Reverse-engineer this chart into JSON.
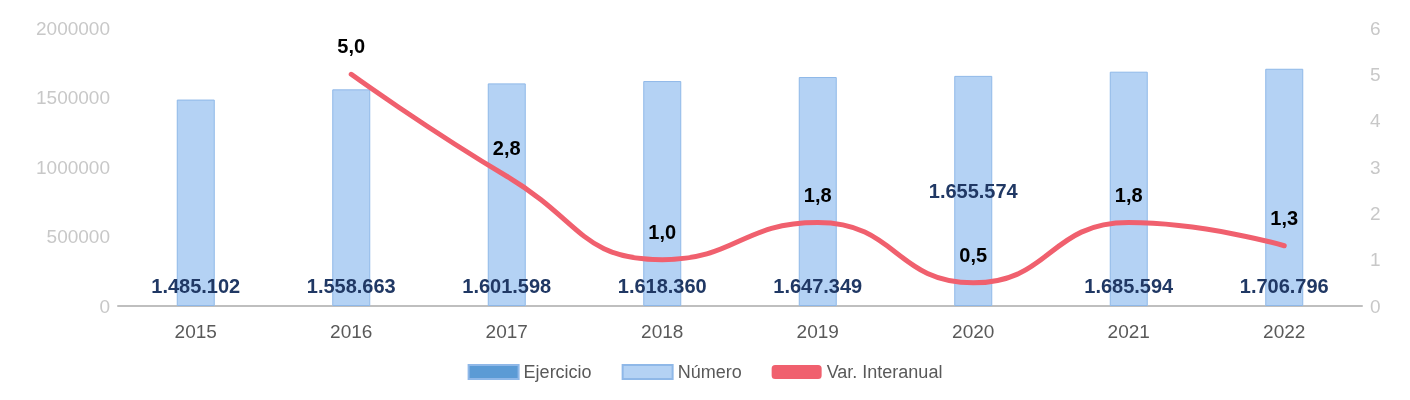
{
  "chart_data": {
    "type": "bar",
    "categories": [
      "2015",
      "2016",
      "2017",
      "2018",
      "2019",
      "2020",
      "2021",
      "2022"
    ],
    "series": [
      {
        "name": "Ejercicio",
        "color": "#5b9bd5",
        "values": [
          null,
          null,
          null,
          null,
          null,
          null,
          null,
          null
        ]
      },
      {
        "name": "Número",
        "color": "#b4d2f4",
        "values": [
          1485102,
          1558663,
          1601598,
          1618360,
          1647349,
          1655574,
          1685594,
          1706796
        ],
        "value_labels": [
          "1.485.102",
          "1.558.663",
          "1.601.598",
          "1.618.360",
          "1.647.349",
          "1.655.574",
          "1.685.594",
          "1.706.796"
        ]
      },
      {
        "name": "Var. Interanual",
        "type": "line",
        "axis": "y2",
        "color": "#f0606e",
        "values": [
          null,
          5.0,
          2.8,
          1.0,
          1.8,
          0.5,
          1.8,
          1.3
        ],
        "value_labels": [
          null,
          "5,0",
          "2,8",
          "1,0",
          "1,8",
          "0,5",
          "1,8",
          "1,3"
        ]
      }
    ],
    "ylim": [
      0,
      2000000
    ],
    "yticks": [
      0,
      500000,
      1000000,
      1500000,
      2000000
    ],
    "y2lim": [
      0,
      6
    ],
    "y2ticks": [
      0,
      1,
      2,
      3,
      4,
      5,
      6
    ],
    "legend": "bottom",
    "grid": false,
    "marker": "none",
    "line_style": "solid"
  }
}
